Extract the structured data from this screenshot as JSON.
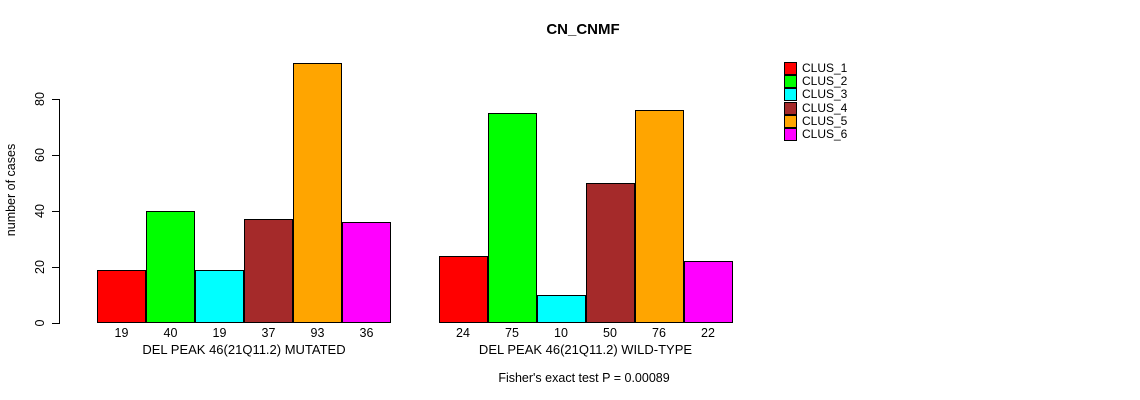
{
  "figure": {
    "background_color": "#FFFFFF",
    "text_color": "#000000",
    "axis_color": "#000000"
  },
  "chart_data": {
    "type": "bar",
    "title": "CN_CNMF",
    "xlabel": "",
    "ylabel": "number of cases",
    "ylim": [
      0,
      93
    ],
    "y_ticks": [
      0,
      20,
      40,
      60,
      80
    ],
    "grid": false,
    "legend_position": "right",
    "bar_value_labels_shown": true,
    "categories": [
      "DEL PEAK 46(21Q11.2) MUTATED",
      "DEL PEAK 46(21Q11.2) WILD-TYPE"
    ],
    "series": [
      {
        "name": "CLUS_1",
        "color": "#FF0000",
        "values": [
          19,
          24
        ]
      },
      {
        "name": "CLUS_2",
        "color": "#00FF00",
        "values": [
          40,
          75
        ]
      },
      {
        "name": "CLUS_3",
        "color": "#00FFFF",
        "values": [
          19,
          10
        ]
      },
      {
        "name": "CLUS_4",
        "color": "#A52A2A",
        "values": [
          37,
          50
        ]
      },
      {
        "name": "CLUS_5",
        "color": "#FFA500",
        "values": [
          93,
          76
        ]
      },
      {
        "name": "CLUS_6",
        "color": "#FF00FF",
        "values": [
          36,
          22
        ]
      }
    ],
    "annotation": "Fisher's exact test P = 0.00089"
  }
}
